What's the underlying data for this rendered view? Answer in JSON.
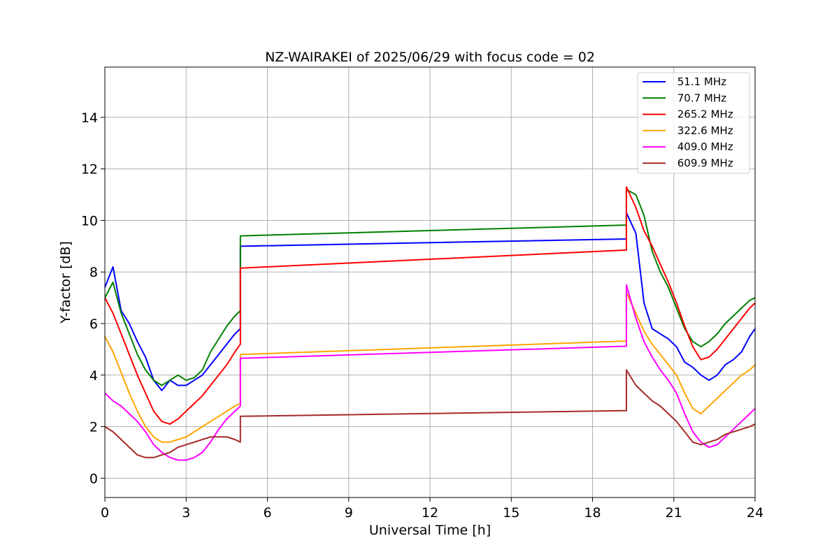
{
  "chart_data": {
    "type": "line",
    "title": "NZ-WAIRAKEI of 2025/06/29 with focus code = 02",
    "xlabel": "Universal Time [h]",
    "ylabel": "Y-factor [dB]",
    "xlim": [
      0,
      24
    ],
    "ylim": [
      -0.75,
      15.95
    ],
    "xticks": [
      0,
      3,
      6,
      9,
      12,
      15,
      18,
      21,
      24
    ],
    "yticks": [
      0,
      2,
      4,
      6,
      8,
      10,
      12,
      14
    ],
    "grid": true,
    "legend_position": "top-right",
    "series": [
      {
        "name": " 51.1 MHz",
        "color": "#0000ff",
        "points": [
          [
            0.0,
            7.4
          ],
          [
            0.3,
            8.2
          ],
          [
            0.6,
            6.5
          ],
          [
            0.9,
            6.0
          ],
          [
            1.2,
            5.3
          ],
          [
            1.5,
            4.7
          ],
          [
            1.8,
            3.8
          ],
          [
            2.1,
            3.4
          ],
          [
            2.4,
            3.8
          ],
          [
            2.7,
            3.6
          ],
          [
            3.0,
            3.6
          ],
          [
            3.3,
            3.8
          ],
          [
            3.6,
            4.0
          ],
          [
            3.9,
            4.4
          ],
          [
            4.2,
            4.8
          ],
          [
            4.5,
            5.2
          ],
          [
            4.8,
            5.6
          ],
          [
            5.0,
            5.8
          ],
          [
            5.0,
            9.0
          ],
          [
            19.25,
            9.28
          ],
          [
            19.25,
            10.3
          ],
          [
            19.6,
            9.5
          ],
          [
            19.9,
            6.8
          ],
          [
            20.2,
            5.8
          ],
          [
            20.5,
            5.6
          ],
          [
            20.8,
            5.4
          ],
          [
            21.1,
            5.1
          ],
          [
            21.4,
            4.5
          ],
          [
            21.7,
            4.3
          ],
          [
            22.0,
            4.0
          ],
          [
            22.3,
            3.8
          ],
          [
            22.6,
            4.0
          ],
          [
            22.9,
            4.4
          ],
          [
            23.2,
            4.6
          ],
          [
            23.5,
            4.9
          ],
          [
            23.8,
            5.5
          ],
          [
            24.0,
            5.8
          ]
        ]
      },
      {
        "name": " 70.7 MHz",
        "color": "#008000",
        "points": [
          [
            0.0,
            7.0
          ],
          [
            0.3,
            7.6
          ],
          [
            0.6,
            6.4
          ],
          [
            0.9,
            5.6
          ],
          [
            1.2,
            4.8
          ],
          [
            1.5,
            4.2
          ],
          [
            1.8,
            3.8
          ],
          [
            2.1,
            3.6
          ],
          [
            2.4,
            3.8
          ],
          [
            2.7,
            4.0
          ],
          [
            3.0,
            3.8
          ],
          [
            3.3,
            3.9
          ],
          [
            3.6,
            4.2
          ],
          [
            3.9,
            4.9
          ],
          [
            4.2,
            5.4
          ],
          [
            4.5,
            5.9
          ],
          [
            4.8,
            6.3
          ],
          [
            5.0,
            6.5
          ],
          [
            5.0,
            9.4
          ],
          [
            19.25,
            9.82
          ],
          [
            19.25,
            11.2
          ],
          [
            19.6,
            11.0
          ],
          [
            19.9,
            10.2
          ],
          [
            20.2,
            8.8
          ],
          [
            20.5,
            8.0
          ],
          [
            20.8,
            7.4
          ],
          [
            21.1,
            6.6
          ],
          [
            21.4,
            5.8
          ],
          [
            21.7,
            5.3
          ],
          [
            22.0,
            5.1
          ],
          [
            22.3,
            5.3
          ],
          [
            22.6,
            5.6
          ],
          [
            22.9,
            6.0
          ],
          [
            23.2,
            6.3
          ],
          [
            23.5,
            6.6
          ],
          [
            23.8,
            6.9
          ],
          [
            24.0,
            7.0
          ]
        ]
      },
      {
        "name": " 265.2 MHz",
        "color": "#ff0000",
        "points": [
          [
            0.0,
            7.0
          ],
          [
            0.3,
            6.4
          ],
          [
            0.6,
            5.6
          ],
          [
            0.9,
            4.8
          ],
          [
            1.2,
            4.0
          ],
          [
            1.5,
            3.3
          ],
          [
            1.8,
            2.6
          ],
          [
            2.1,
            2.2
          ],
          [
            2.4,
            2.1
          ],
          [
            2.7,
            2.3
          ],
          [
            3.0,
            2.6
          ],
          [
            3.3,
            2.9
          ],
          [
            3.6,
            3.2
          ],
          [
            3.9,
            3.6
          ],
          [
            4.2,
            4.0
          ],
          [
            4.5,
            4.4
          ],
          [
            4.8,
            4.9
          ],
          [
            5.0,
            5.2
          ],
          [
            5.0,
            8.15
          ],
          [
            19.25,
            8.85
          ],
          [
            19.25,
            11.3
          ],
          [
            19.6,
            10.5
          ],
          [
            19.9,
            9.6
          ],
          [
            20.2,
            9.0
          ],
          [
            20.5,
            8.3
          ],
          [
            20.8,
            7.6
          ],
          [
            21.1,
            6.8
          ],
          [
            21.4,
            5.9
          ],
          [
            21.7,
            5.1
          ],
          [
            22.0,
            4.6
          ],
          [
            22.3,
            4.7
          ],
          [
            22.6,
            5.0
          ],
          [
            22.9,
            5.4
          ],
          [
            23.2,
            5.8
          ],
          [
            23.5,
            6.2
          ],
          [
            23.8,
            6.6
          ],
          [
            24.0,
            6.8
          ]
        ]
      },
      {
        "name": " 322.6 MHz",
        "color": "#ffa500",
        "points": [
          [
            0.0,
            5.5
          ],
          [
            0.3,
            4.9
          ],
          [
            0.6,
            4.1
          ],
          [
            0.9,
            3.3
          ],
          [
            1.2,
            2.6
          ],
          [
            1.5,
            2.0
          ],
          [
            1.8,
            1.6
          ],
          [
            2.1,
            1.4
          ],
          [
            2.4,
            1.4
          ],
          [
            2.7,
            1.5
          ],
          [
            3.0,
            1.6
          ],
          [
            3.3,
            1.8
          ],
          [
            3.6,
            2.0
          ],
          [
            3.9,
            2.2
          ],
          [
            4.2,
            2.4
          ],
          [
            4.5,
            2.6
          ],
          [
            4.8,
            2.8
          ],
          [
            5.0,
            2.9
          ],
          [
            5.0,
            4.8
          ],
          [
            19.25,
            5.32
          ],
          [
            19.25,
            7.2
          ],
          [
            19.6,
            6.4
          ],
          [
            19.9,
            5.7
          ],
          [
            20.2,
            5.2
          ],
          [
            20.5,
            4.8
          ],
          [
            20.8,
            4.4
          ],
          [
            21.1,
            4.0
          ],
          [
            21.4,
            3.3
          ],
          [
            21.7,
            2.7
          ],
          [
            22.0,
            2.5
          ],
          [
            22.3,
            2.8
          ],
          [
            22.6,
            3.1
          ],
          [
            22.9,
            3.4
          ],
          [
            23.2,
            3.7
          ],
          [
            23.5,
            4.0
          ],
          [
            23.8,
            4.2
          ],
          [
            24.0,
            4.4
          ]
        ]
      },
      {
        "name": " 409.0 MHz",
        "color": "#ff00ff",
        "points": [
          [
            0.0,
            3.3
          ],
          [
            0.3,
            3.0
          ],
          [
            0.6,
            2.8
          ],
          [
            0.9,
            2.5
          ],
          [
            1.2,
            2.2
          ],
          [
            1.5,
            1.8
          ],
          [
            1.8,
            1.3
          ],
          [
            2.1,
            1.0
          ],
          [
            2.4,
            0.8
          ],
          [
            2.7,
            0.7
          ],
          [
            3.0,
            0.7
          ],
          [
            3.3,
            0.8
          ],
          [
            3.6,
            1.0
          ],
          [
            3.9,
            1.4
          ],
          [
            4.2,
            1.9
          ],
          [
            4.5,
            2.3
          ],
          [
            4.8,
            2.6
          ],
          [
            5.0,
            2.8
          ],
          [
            5.0,
            4.65
          ],
          [
            19.25,
            5.12
          ],
          [
            19.25,
            7.5
          ],
          [
            19.6,
            6.2
          ],
          [
            19.9,
            5.3
          ],
          [
            20.2,
            4.7
          ],
          [
            20.5,
            4.2
          ],
          [
            20.8,
            3.8
          ],
          [
            21.1,
            3.3
          ],
          [
            21.4,
            2.5
          ],
          [
            21.7,
            1.8
          ],
          [
            22.0,
            1.4
          ],
          [
            22.3,
            1.2
          ],
          [
            22.6,
            1.3
          ],
          [
            22.9,
            1.6
          ],
          [
            23.2,
            1.9
          ],
          [
            23.5,
            2.2
          ],
          [
            23.8,
            2.5
          ],
          [
            24.0,
            2.7
          ]
        ]
      },
      {
        "name": " 609.9 MHz",
        "color": "#a52a2a",
        "points": [
          [
            0.0,
            2.0
          ],
          [
            0.3,
            1.8
          ],
          [
            0.6,
            1.5
          ],
          [
            0.9,
            1.2
          ],
          [
            1.2,
            0.9
          ],
          [
            1.5,
            0.8
          ],
          [
            1.8,
            0.8
          ],
          [
            2.1,
            0.9
          ],
          [
            2.4,
            1.0
          ],
          [
            2.7,
            1.2
          ],
          [
            3.0,
            1.3
          ],
          [
            3.3,
            1.4
          ],
          [
            3.6,
            1.5
          ],
          [
            3.9,
            1.6
          ],
          [
            4.2,
            1.6
          ],
          [
            4.5,
            1.6
          ],
          [
            4.8,
            1.5
          ],
          [
            5.0,
            1.4
          ],
          [
            5.0,
            2.4
          ],
          [
            19.25,
            2.62
          ],
          [
            19.25,
            4.2
          ],
          [
            19.6,
            3.6
          ],
          [
            19.9,
            3.3
          ],
          [
            20.2,
            3.0
          ],
          [
            20.5,
            2.8
          ],
          [
            20.8,
            2.5
          ],
          [
            21.1,
            2.2
          ],
          [
            21.4,
            1.8
          ],
          [
            21.7,
            1.4
          ],
          [
            22.0,
            1.3
          ],
          [
            22.3,
            1.4
          ],
          [
            22.6,
            1.5
          ],
          [
            22.9,
            1.7
          ],
          [
            23.2,
            1.8
          ],
          [
            23.5,
            1.9
          ],
          [
            23.8,
            2.0
          ],
          [
            24.0,
            2.1
          ]
        ]
      }
    ]
  }
}
